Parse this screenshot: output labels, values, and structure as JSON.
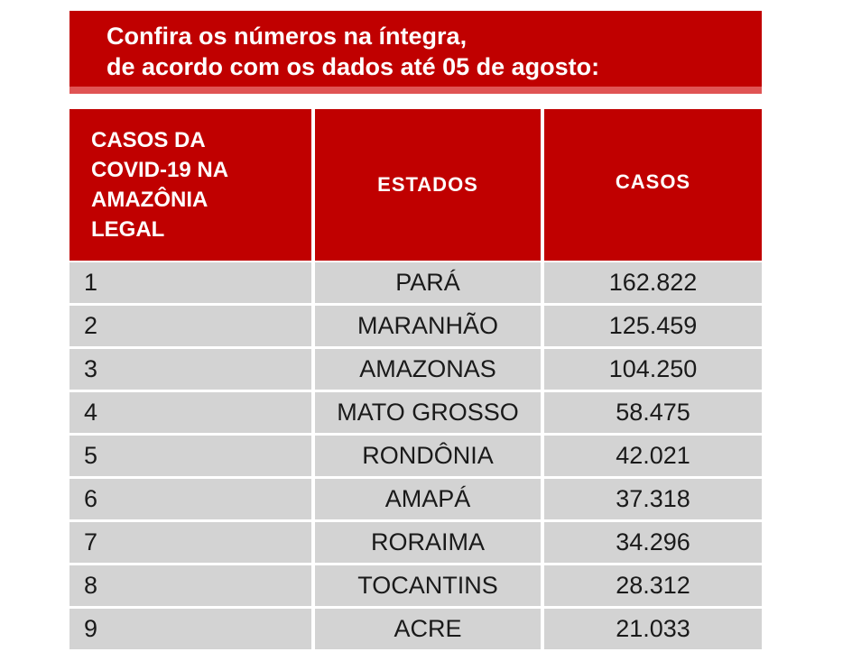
{
  "banner": {
    "line1": "Confira os números na íntegra,",
    "line2": "de acordo com os dados  até 05 de agosto:"
  },
  "table": {
    "headers": {
      "rank": [
        "CASOS DA",
        "COVID-19 NA",
        "AMAZÔNIA",
        "LEGAL"
      ],
      "state": "ESTADOS",
      "cases": "CASOS"
    },
    "rows": [
      {
        "rank": "1",
        "state": "PARÁ",
        "cases": "162.822"
      },
      {
        "rank": "2",
        "state": "MARANHÃO",
        "cases": "125.459"
      },
      {
        "rank": "3",
        "state": "AMAZONAS",
        "cases": "104.250"
      },
      {
        "rank": "4",
        "state": "MATO GROSSO",
        "cases": "58.475"
      },
      {
        "rank": "5",
        "state": "RONDÔNIA",
        "cases": "42.021"
      },
      {
        "rank": "6",
        "state": "AMAPÁ",
        "cases": "37.318"
      },
      {
        "rank": "7",
        "state": "RORAIMA",
        "cases": "34.296"
      },
      {
        "rank": "8",
        "state": "TOCANTINS",
        "cases": "28.312"
      },
      {
        "rank": "9",
        "state": "ACRE",
        "cases": "21.033"
      }
    ]
  },
  "colors": {
    "header_red": "#c00000",
    "stripe_red": "#e05454",
    "row_gray": "#d3d3d3"
  }
}
